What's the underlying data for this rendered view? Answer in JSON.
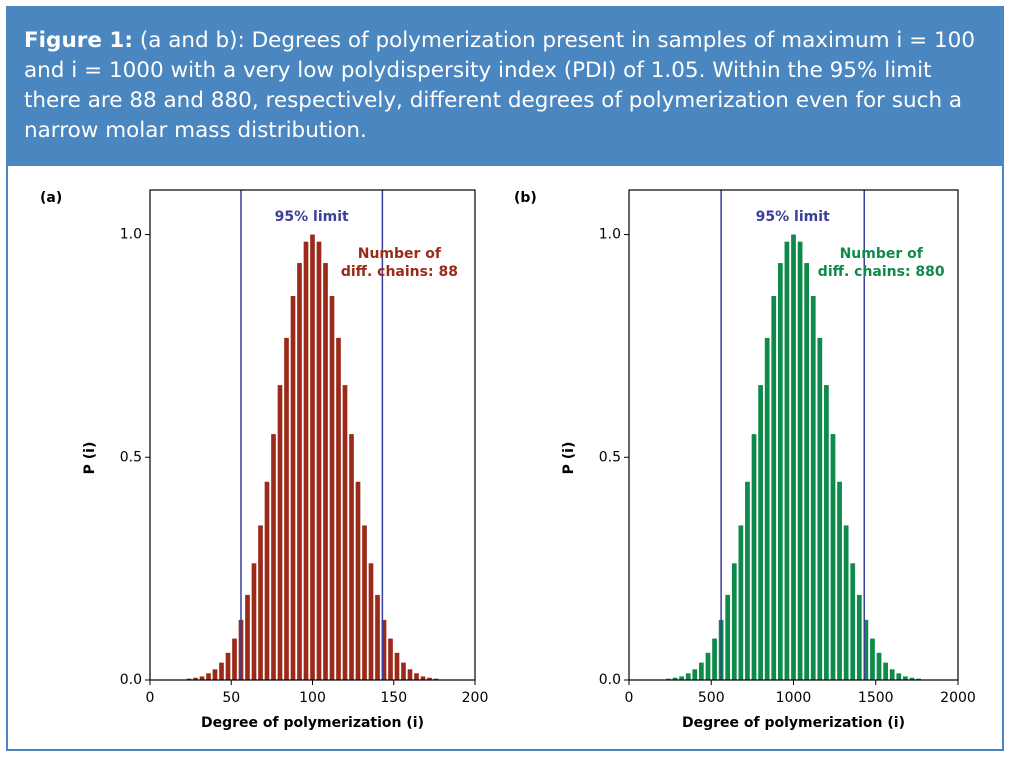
{
  "caption": {
    "label": "Figure 1:",
    "text": "(a and b): Degrees of polymerization present in samples of maximum i = 100 and i = 1000 with a very low polydispersity index (PDI) of 1.05. Within the 95% limit there are 88 and 880, respectively, different degrees of polymerization even for such a narrow molar mass distribution."
  },
  "chart_data": [
    {
      "type": "bar",
      "panel_label": "(a)",
      "x": [
        24,
        28,
        32,
        36,
        40,
        44,
        48,
        52,
        56,
        60,
        64,
        68,
        72,
        76,
        80,
        84,
        88,
        92,
        96,
        100,
        104,
        108,
        112,
        116,
        120,
        124,
        128,
        132,
        136,
        140,
        144,
        148,
        152,
        156,
        160,
        164,
        168,
        172,
        176
      ],
      "values": [
        0.003,
        0.005,
        0.008,
        0.015,
        0.024,
        0.039,
        0.061,
        0.093,
        0.135,
        0.191,
        0.262,
        0.347,
        0.445,
        0.552,
        0.662,
        0.768,
        0.862,
        0.936,
        0.984,
        1.0,
        0.984,
        0.936,
        0.862,
        0.768,
        0.662,
        0.552,
        0.445,
        0.347,
        0.262,
        0.191,
        0.135,
        0.093,
        0.061,
        0.039,
        0.024,
        0.015,
        0.008,
        0.005,
        0.003
      ],
      "color": "#9b2a1a",
      "xlim": [
        0,
        200
      ],
      "xticks": [
        0,
        50,
        100,
        150,
        200
      ],
      "ylim": [
        0,
        1.1
      ],
      "yticks": [
        {
          "value": 0,
          "label": "0.0"
        },
        0.5,
        {
          "value": 1,
          "label": "1.0"
        }
      ],
      "xlabel": "Degree of polymerization (i)",
      "ylabel": "P (i)",
      "limit_label": "95% limit",
      "limits": [
        56,
        143
      ],
      "limit_color": "#3a3f9a",
      "annotation": [
        "Number of",
        "diff. chains: 88"
      ]
    },
    {
      "type": "bar",
      "panel_label": "(b)",
      "x": [
        240,
        280,
        320,
        360,
        400,
        440,
        480,
        520,
        560,
        600,
        640,
        680,
        720,
        760,
        800,
        840,
        880,
        920,
        960,
        1000,
        1040,
        1080,
        1120,
        1160,
        1200,
        1240,
        1280,
        1320,
        1360,
        1400,
        1440,
        1480,
        1520,
        1560,
        1600,
        1640,
        1680,
        1720,
        1760
      ],
      "values": [
        0.003,
        0.005,
        0.008,
        0.015,
        0.024,
        0.039,
        0.061,
        0.093,
        0.135,
        0.191,
        0.262,
        0.347,
        0.445,
        0.552,
        0.662,
        0.768,
        0.862,
        0.936,
        0.984,
        1.0,
        0.984,
        0.936,
        0.862,
        0.768,
        0.662,
        0.552,
        0.445,
        0.347,
        0.262,
        0.191,
        0.135,
        0.093,
        0.061,
        0.039,
        0.024,
        0.015,
        0.008,
        0.005,
        0.003
      ],
      "color": "#0e8a4a",
      "xlim": [
        0,
        2000
      ],
      "xticks": [
        0,
        500,
        1000,
        1500,
        2000
      ],
      "ylim": [
        0,
        1.1
      ],
      "yticks": [
        {
          "value": 0,
          "label": "0.0"
        },
        0.5,
        {
          "value": 1,
          "label": "1.0"
        }
      ],
      "xlabel": "Degree of polymerization (i)",
      "ylabel": "P (i)",
      "limit_label": "95% limit",
      "limits": [
        560,
        1430
      ],
      "limit_color": "#3a3f9a",
      "annotation": [
        "Number of",
        "diff. chains: 880"
      ]
    }
  ]
}
